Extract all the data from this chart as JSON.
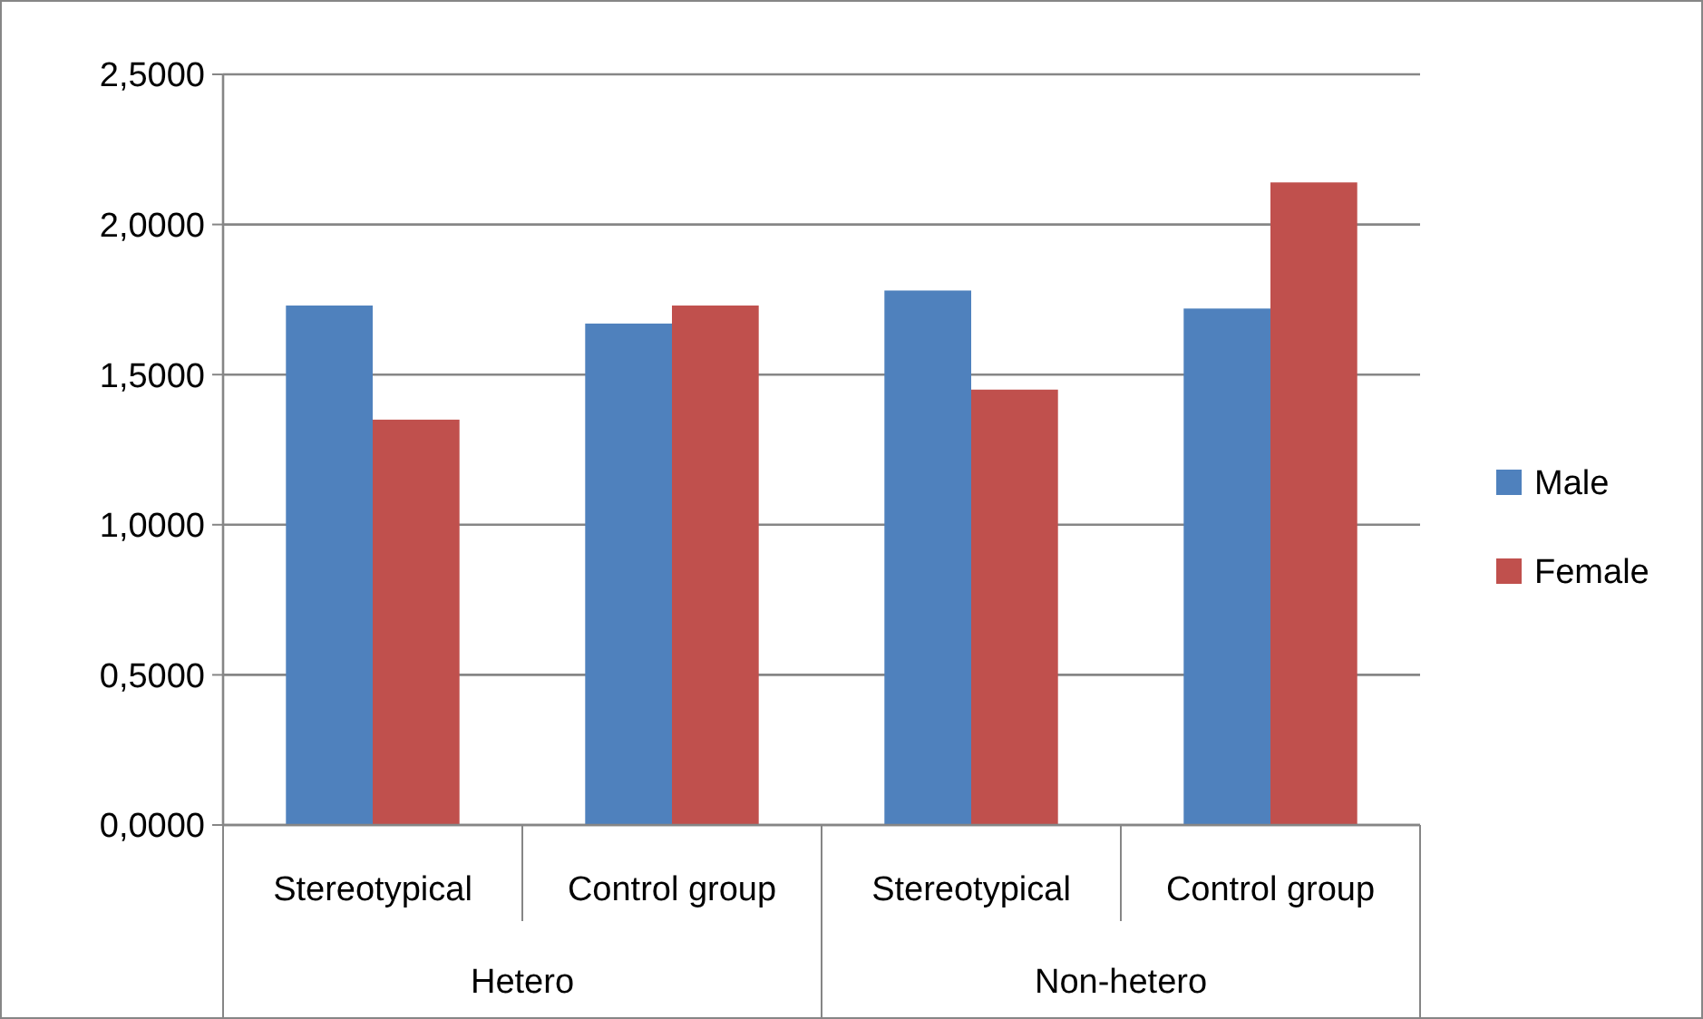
{
  "chart_data": {
    "type": "bar",
    "categories": [
      "Stereotypical",
      "Control group",
      "Stereotypical",
      "Control group"
    ],
    "series": [
      {
        "name": "Male",
        "color": "#4f81bd",
        "values": [
          1.73,
          1.67,
          1.78,
          1.72
        ]
      },
      {
        "name": "Female",
        "color": "#c0504d",
        "values": [
          1.35,
          1.73,
          1.45,
          2.14
        ]
      }
    ],
    "annotations": [
      "Hetero",
      "Non-hetero"
    ],
    "ylim": [
      0,
      2.5
    ],
    "yticks": [
      {
        "value": 0,
        "label": "0,0000"
      },
      {
        "value": 0.5,
        "label": "0,5000"
      },
      {
        "value": 1,
        "label": "1,0000"
      },
      {
        "value": 1.5,
        "label": "1,5000"
      },
      {
        "value": 2,
        "label": "2,0000"
      },
      {
        "value": 2.5,
        "label": "2,5000"
      }
    ],
    "grid": "y",
    "legend": "right"
  }
}
